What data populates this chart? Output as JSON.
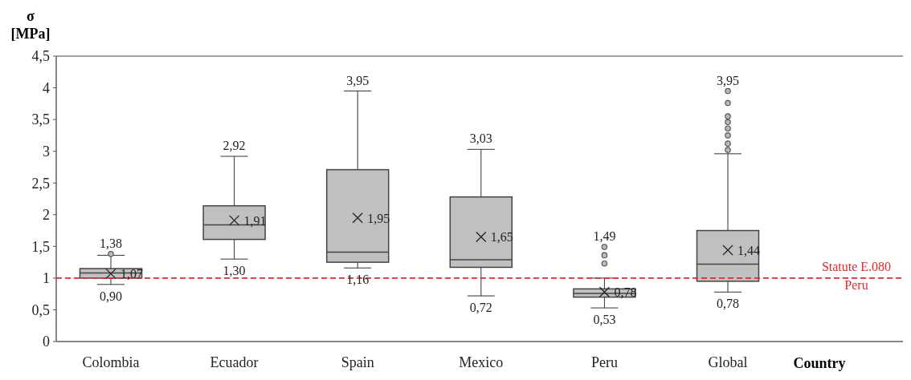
{
  "chart_data": {
    "type": "box",
    "ylabel": "σ\n[MPa]",
    "xlabel": "Country",
    "categories": [
      "Colombia",
      "Ecuador",
      "Spain",
      "Mexico",
      "Peru",
      "Global"
    ],
    "boxes": [
      {
        "low": 0.9,
        "q1": 1.0,
        "median": 1.08,
        "q3": 1.15,
        "high": 1.36,
        "mean": 1.07,
        "outliers": [
          1.38
        ]
      },
      {
        "low": 1.3,
        "q1": 1.61,
        "median": 1.84,
        "q3": 2.14,
        "high": 2.92,
        "mean": 1.91
      },
      {
        "low": 1.16,
        "q1": 1.25,
        "median": 1.41,
        "q3": 2.71,
        "high": 3.95,
        "mean": 1.95
      },
      {
        "low": 0.72,
        "q1": 1.17,
        "median": 1.29,
        "q3": 2.28,
        "high": 3.03,
        "mean": 1.65
      },
      {
        "low": 0.53,
        "q1": 0.7,
        "median": 0.76,
        "q3": 0.83,
        "high": 1.0,
        "mean": 0.78,
        "outliers": [
          1.23,
          1.36,
          1.49
        ]
      },
      {
        "low": 0.78,
        "q1": 0.95,
        "median": 1.22,
        "q3": 1.75,
        "high": 2.96,
        "mean": 1.44,
        "outliers": [
          3.02,
          3.12,
          3.25,
          3.36,
          3.46,
          3.55,
          3.76,
          3.95
        ]
      }
    ],
    "color": "#c0c0c0",
    "ylim": [
      0,
      4.5
    ],
    "yticks": [
      0,
      {
        "value": 0.5,
        "label": "0,5"
      },
      1,
      {
        "value": 1.5,
        "label": "1,5"
      },
      2,
      {
        "value": 2.5,
        "label": "2,5"
      },
      3,
      {
        "value": 3.5,
        "label": "3,5"
      },
      4,
      {
        "value": 4.5,
        "label": "4,5"
      }
    ],
    "ref_lines": [
      {
        "axis": "y",
        "value": 1.0,
        "label": "Statute E.080\nPeru",
        "color": "#e8262a",
        "line_style": "dashed"
      }
    ],
    "annotations": [
      {
        "text": "1,38",
        "x": "Colombia",
        "y": 1.38
      },
      "1,07",
      {
        "text": "0,90",
        "x": "Colombia",
        "y": 0.9
      },
      {
        "text": "2,92",
        "x": "Ecuador",
        "y": 2.92
      },
      "1,91",
      {
        "text": "1,30",
        "x": "Ecuador",
        "y": 1.3
      },
      {
        "text": "3,95",
        "x": "Spain",
        "y": 3.95
      },
      "1,95",
      {
        "text": "1,16",
        "x": "Spain",
        "y": 1.16
      },
      {
        "text": "3,03",
        "x": "Mexico",
        "y": 3.03
      },
      "1,65",
      {
        "text": "0,72",
        "x": "Mexico",
        "y": 0.72
      },
      "1,49",
      "0,78",
      {
        "text": "0,53",
        "x": "Peru",
        "y": 0.53
      },
      "3,95",
      "1,44",
      {
        "text": "0,78",
        "x": "Global",
        "y": 0.78
      }
    ]
  }
}
